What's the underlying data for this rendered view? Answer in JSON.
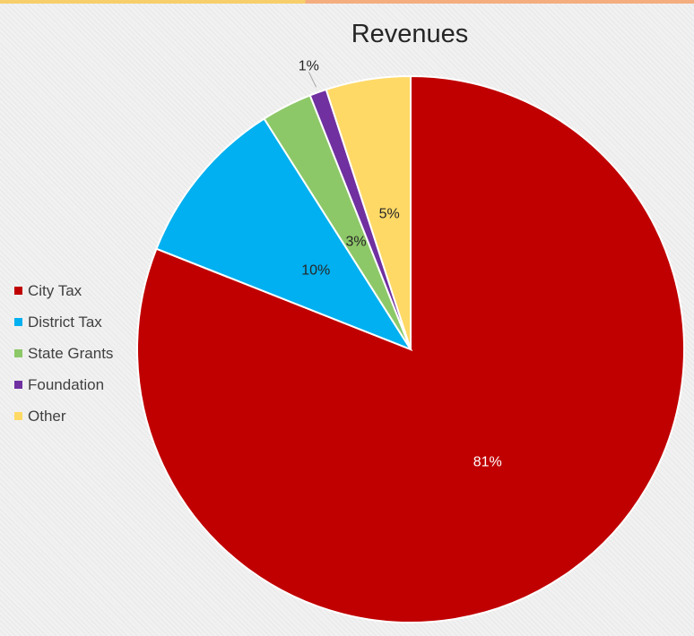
{
  "chart_data": {
    "type": "pie",
    "title": "Revenues",
    "categories": [
      "City Tax",
      "District Tax",
      "State Grants",
      "Foundation",
      "Other"
    ],
    "values": [
      81,
      10,
      3,
      1,
      5
    ],
    "labels": [
      "81%",
      "10%",
      "3%",
      "1%",
      "5%"
    ],
    "colors": [
      "#c00000",
      "#00b0f0",
      "#8dc868",
      "#7030a0",
      "#ffd966"
    ],
    "label_colors": [
      "#ffffff",
      "#262626",
      "#262626",
      "#262626",
      "#262626"
    ],
    "legend": "left"
  }
}
